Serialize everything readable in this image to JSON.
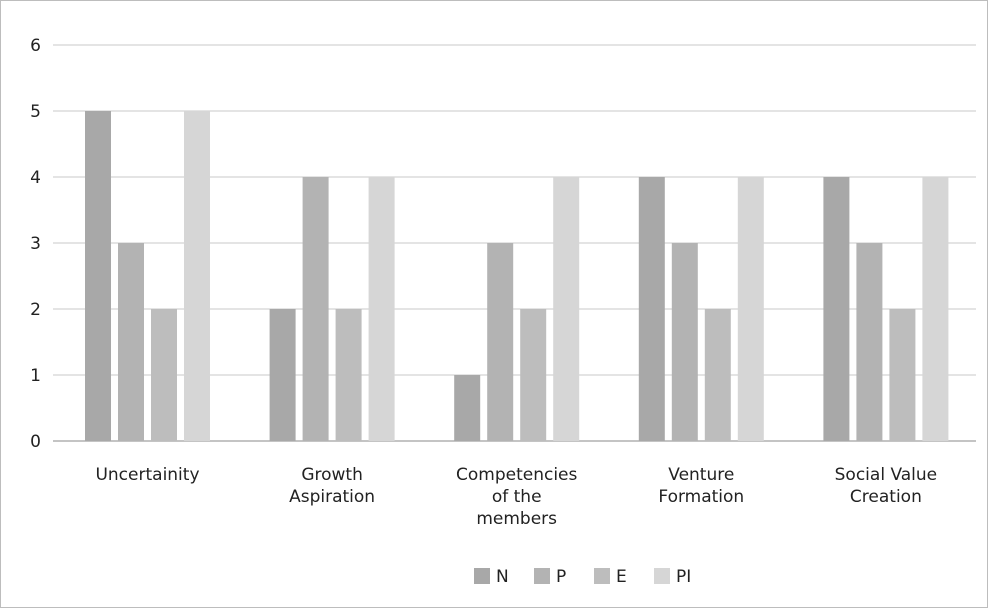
{
  "chart_data": {
    "type": "bar",
    "categories": [
      [
        "Uncertainity"
      ],
      [
        "Growth",
        "Aspiration"
      ],
      [
        "Competencies",
        "of the",
        "members"
      ],
      [
        "Venture",
        "Formation"
      ],
      [
        "Social Value",
        "Creation"
      ]
    ],
    "series": [
      {
        "name": "N",
        "color": "#a8a8a8",
        "values": [
          5,
          2,
          1,
          4,
          4
        ]
      },
      {
        "name": "P",
        "color": "#b3b3b3",
        "values": [
          3,
          4,
          3,
          3,
          3
        ]
      },
      {
        "name": "E",
        "color": "#bdbdbd",
        "values": [
          2,
          2,
          2,
          2,
          2
        ]
      },
      {
        "name": "PI",
        "color": "#d6d6d6",
        "values": [
          5,
          4,
          4,
          4,
          4
        ]
      }
    ],
    "ylim": [
      0,
      6
    ],
    "yticks": [
      "0",
      "1",
      "2",
      "3",
      "4",
      "5",
      "6"
    ],
    "grid": true,
    "legend_position": "bottom-center"
  }
}
